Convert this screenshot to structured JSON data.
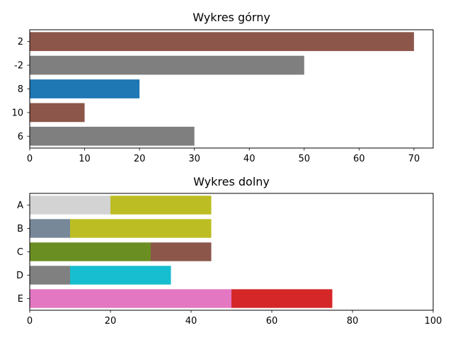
{
  "chart_data": [
    {
      "type": "bar",
      "orientation": "horizontal",
      "title": "Wykres górny",
      "xlabel": "",
      "ylabel": "",
      "categories": [
        "2",
        "-2",
        "8",
        "10",
        "6"
      ],
      "values": [
        70,
        50,
        20,
        10,
        30
      ],
      "colors": [
        "#8c564b",
        "#7f7f7f",
        "#1f77b4",
        "#8c564b",
        "#7f7f7f"
      ],
      "xlim": [
        0,
        73.5
      ],
      "xticks": [
        0,
        10,
        20,
        30,
        40,
        50,
        60,
        70
      ],
      "grid": false,
      "legend": "none"
    },
    {
      "type": "bar",
      "orientation": "horizontal",
      "stacked": true,
      "title": "Wykres dolny",
      "xlabel": "",
      "ylabel": "",
      "categories": [
        "A",
        "B",
        "C",
        "D",
        "E"
      ],
      "segments": [
        [
          {
            "value": 20,
            "color": "#d3d3d3"
          },
          {
            "value": 25,
            "color": "#bcbd22"
          }
        ],
        [
          {
            "value": 10,
            "color": "#778899"
          },
          {
            "value": 35,
            "color": "#bcbd22"
          }
        ],
        [
          {
            "value": 30,
            "color": "#6b8e23"
          },
          {
            "value": 15,
            "color": "#8c564b"
          }
        ],
        [
          {
            "value": 10,
            "color": "#808080"
          },
          {
            "value": 25,
            "color": "#17becf"
          }
        ],
        [
          {
            "value": 50,
            "color": "#e377c2"
          },
          {
            "value": 25,
            "color": "#d62728"
          }
        ]
      ],
      "xlim": [
        0,
        100
      ],
      "xticks": [
        0,
        20,
        40,
        60,
        80,
        100
      ],
      "grid": false,
      "legend": "none"
    }
  ]
}
